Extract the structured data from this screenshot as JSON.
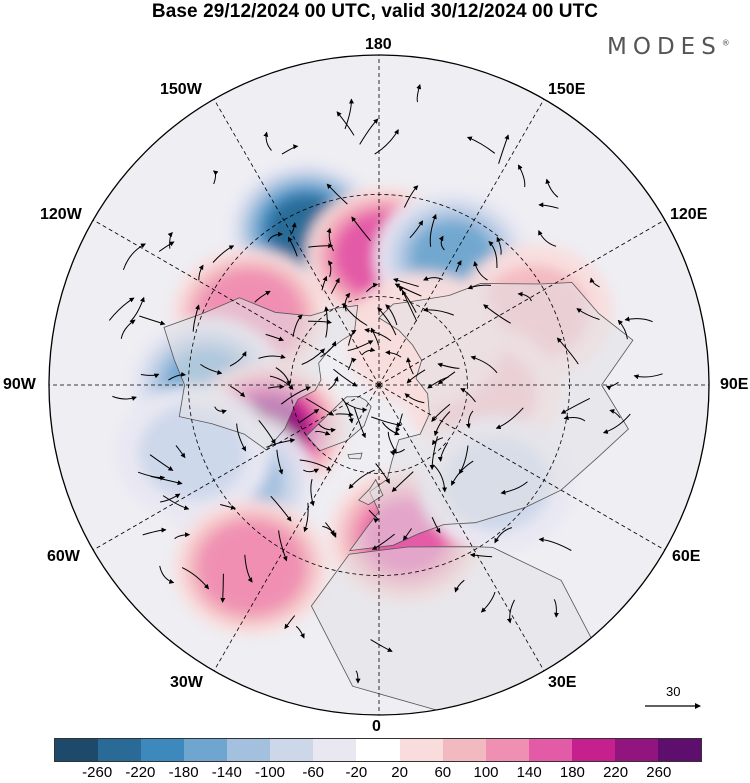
{
  "title": "Base 29/12/2024 00 UTC, valid 30/12/2024 00 UTC",
  "brand": "MODES",
  "brand_mark": "®",
  "longitude_labels": {
    "top": "180",
    "bottom": "0",
    "left": "90W",
    "right": "90E",
    "upper_left_1": "150W",
    "upper_left_2": "120W",
    "upper_right_1": "150E",
    "upper_right_2": "120E",
    "lower_left_1": "60W",
    "lower_left_2": "30W",
    "lower_right_1": "60E",
    "lower_right_2": "30E"
  },
  "vector_scale": {
    "label": "30"
  },
  "colorbar": {
    "colors": [
      "#1d4a6b",
      "#2a6a96",
      "#3d88bd",
      "#6fa6cf",
      "#a3c0de",
      "#ccd7ea",
      "#e9e8f2",
      "#ffffff",
      "#f9dddd",
      "#f3b9c0",
      "#ef8fb2",
      "#e35aa6",
      "#c61f8e",
      "#92157f",
      "#5e0f6e"
    ],
    "tick_labels": [
      "-260",
      "-220",
      "-180",
      "-140",
      "-100",
      "-60",
      "-20",
      "20",
      "60",
      "100",
      "140",
      "180",
      "220",
      "260"
    ]
  },
  "map": {
    "projection": "north polar stereographic",
    "anomaly_features": [
      {
        "sign": "negative",
        "value": -240,
        "lon": -155,
        "lat": 35
      },
      {
        "sign": "positive",
        "value": 180,
        "lon": 178,
        "lat": 47
      },
      {
        "sign": "negative",
        "value": -160,
        "lon": 150,
        "lat": 42
      },
      {
        "sign": "positive",
        "value": 140,
        "lon": -118,
        "lat": 42
      },
      {
        "sign": "negative",
        "value": -140,
        "lon": -90,
        "lat": 35
      },
      {
        "sign": "positive",
        "value": 230,
        "lon": -68,
        "lat": 50
      },
      {
        "sign": "negative",
        "value": -100,
        "lon": -55,
        "lat": 35
      },
      {
        "sign": "negative",
        "value": -80,
        "lon": -70,
        "lat": 28
      },
      {
        "sign": "positive",
        "value": 140,
        "lon": -35,
        "lat": 22
      },
      {
        "sign": "positive",
        "value": 160,
        "lon": 10,
        "lat": 40
      },
      {
        "sign": "positive",
        "value": 80,
        "lon": 115,
        "lat": 35
      },
      {
        "sign": "positive",
        "value": 80,
        "lon": 85,
        "lat": 55
      },
      {
        "sign": "positive",
        "value": 60,
        "lon": 135,
        "lat": 68
      },
      {
        "sign": "negative",
        "value": -60,
        "lon": 50,
        "lat": 40
      }
    ]
  }
}
